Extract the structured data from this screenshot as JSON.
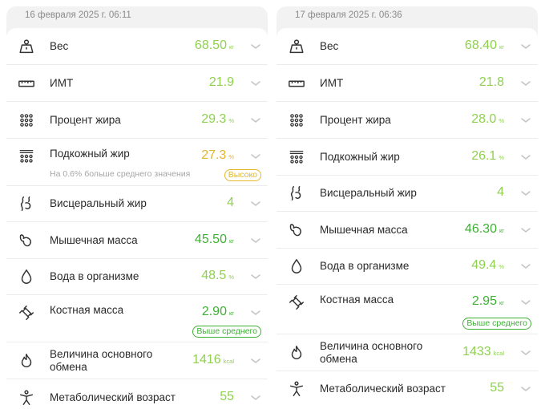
{
  "colors": {
    "value_light_green": "#8fd14f",
    "value_dark_green": "#3eb034",
    "warning_amber": "#e3b62c",
    "text_primary": "#2a2a2a",
    "text_secondary": "#8a8a8a"
  },
  "left": {
    "date": "16 февраля 2025 г. 06:11",
    "rows": [
      {
        "icon": "weight-icon",
        "label": "Вес",
        "value": "68.50",
        "unit": "кг"
      },
      {
        "icon": "ruler-icon",
        "label": "ИМТ",
        "value": "21.9",
        "unit": ""
      },
      {
        "icon": "dots-grid-icon",
        "label": "Процент жира",
        "value": "29.3",
        "unit": "%"
      },
      {
        "icon": "subcutaneous-fat-icon",
        "label": "Подкожный жир",
        "value": "27.3",
        "unit": "%",
        "note": "На 0.6% больше среднего значения",
        "badge": "Высоко"
      },
      {
        "icon": "visceral-fat-icon",
        "label": "Висцеральный жир",
        "value": "4",
        "unit": ""
      },
      {
        "icon": "muscle-icon",
        "label": "Мышечная масса",
        "value": "45.50",
        "unit": "кг"
      },
      {
        "icon": "water-drop-icon",
        "label": "Вода в организме",
        "value": "48.5",
        "unit": "%"
      },
      {
        "icon": "bone-icon",
        "label": "Костная масса",
        "value": "2.90",
        "unit": "кг",
        "badge": "Выше среднего"
      },
      {
        "icon": "flame-icon",
        "label": "Величина основного обмена",
        "value": "1416",
        "unit": "kcal"
      },
      {
        "icon": "body-age-icon",
        "label": "Метаболический возраст",
        "value": "55",
        "unit": ""
      }
    ]
  },
  "right": {
    "date": "17 февраля 2025 г. 06:36",
    "rows": [
      {
        "icon": "weight-icon",
        "label": "Вес",
        "value": "68.40",
        "unit": "кг"
      },
      {
        "icon": "ruler-icon",
        "label": "ИМТ",
        "value": "21.8",
        "unit": ""
      },
      {
        "icon": "dots-grid-icon",
        "label": "Процент жира",
        "value": "28.0",
        "unit": "%"
      },
      {
        "icon": "subcutaneous-fat-icon",
        "label": "Подкожный жир",
        "value": "26.1",
        "unit": "%"
      },
      {
        "icon": "visceral-fat-icon",
        "label": "Висцеральный жир",
        "value": "4",
        "unit": ""
      },
      {
        "icon": "muscle-icon",
        "label": "Мышечная масса",
        "value": "46.30",
        "unit": "кг"
      },
      {
        "icon": "water-drop-icon",
        "label": "Вода в организме",
        "value": "49.4",
        "unit": "%"
      },
      {
        "icon": "bone-icon",
        "label": "Костная масса",
        "value": "2.95",
        "unit": "кг",
        "badge": "Выше среднего"
      },
      {
        "icon": "flame-icon",
        "label": "Величина основного обмена",
        "value": "1433",
        "unit": "kcal"
      },
      {
        "icon": "body-age-icon",
        "label": "Метаболический возраст",
        "value": "55",
        "unit": ""
      }
    ]
  }
}
